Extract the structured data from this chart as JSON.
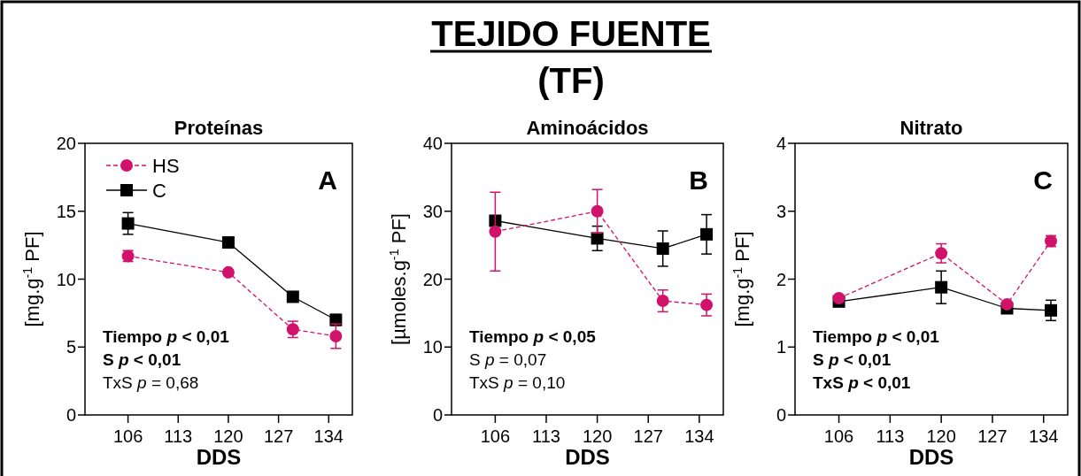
{
  "chart_data": [
    {
      "type": "other",
      "title": "TEJIDO FUENTE",
      "subtitle": "(TF)"
    },
    {
      "type": "line",
      "title": "Proteínas",
      "xlabel": "DDS",
      "ylabel": "[mg.g$^{-1}$ PF]",
      "xlim": [
        100,
        137.3
      ],
      "xticks": [
        106,
        113,
        120,
        127,
        134
      ],
      "ylim": [
        0,
        20
      ],
      "yticks": [
        0,
        5,
        10,
        15,
        20
      ],
      "legend": "top left",
      "grid": false,
      "annotations": [
        "A",
        "Tiempo p < 0,01",
        "S p < 0,01",
        "TxS p = 0,68"
      ],
      "series": [
        {
          "name": "HS",
          "color": "#d1126b",
          "marker": "circle",
          "line_style": "dashed",
          "x": [
            106,
            120,
            129,
            135
          ],
          "values": [
            11.7,
            10.5,
            6.3,
            5.8
          ],
          "errors": [
            0.4,
            0.2,
            0.6,
            0.9
          ]
        },
        {
          "name": "C",
          "color": "#000000",
          "marker": "square",
          "line_style": "solid",
          "x": [
            106,
            120,
            129,
            135
          ],
          "values": [
            14.1,
            12.7,
            8.7,
            7.0
          ],
          "errors": [
            0.8,
            0.2,
            0.3,
            0.4
          ]
        }
      ]
    },
    {
      "type": "line",
      "title": "Aminoácidos",
      "xlabel": "DDS",
      "ylabel": "[µmoles.g$^{-1}$ PF]",
      "xlim": [
        100,
        137.3
      ],
      "xticks": [
        106,
        113,
        120,
        127,
        134
      ],
      "ylim": [
        0,
        40
      ],
      "yticks": [
        0,
        10,
        20,
        30,
        40
      ],
      "grid": false,
      "annotations": [
        "B",
        "Tiempo p < 0,05",
        "S p = 0,07",
        "TxS p = 0,10"
      ],
      "series": [
        {
          "color": "#d1126b",
          "marker": "circle",
          "line_style": "dashed",
          "x": [
            106,
            120,
            129,
            135
          ],
          "values": [
            27,
            30,
            16.8,
            16.2
          ],
          "errors": [
            5.8,
            3.2,
            1.6,
            1.6
          ]
        },
        {
          "color": "#000000",
          "marker": "square",
          "line_style": "solid",
          "x": [
            106,
            120,
            129,
            135
          ],
          "values": [
            28.6,
            26,
            24.5,
            26.6
          ],
          "errors": [
            null,
            1.8,
            2.6,
            2.9
          ]
        }
      ]
    },
    {
      "type": "line",
      "title": "Nitrato",
      "xlabel": "DDS",
      "ylabel": "[mg.g$^{-1}$ PF]",
      "xlim": [
        100,
        137.3
      ],
      "xticks": [
        106,
        113,
        120,
        127,
        134
      ],
      "ylim": [
        0,
        4
      ],
      "yticks": [
        0,
        1,
        2,
        3,
        4
      ],
      "grid": false,
      "annotations": [
        "C",
        "Tiempo p < 0,01",
        "S p < 0,01",
        "TxS p < 0,01"
      ],
      "series": [
        {
          "color": "#d1126b",
          "marker": "circle",
          "line_style": "dashed",
          "x": [
            106,
            120,
            129,
            135
          ],
          "values": [
            1.72,
            2.38,
            1.63,
            2.56
          ],
          "errors": [
            null,
            0.14,
            null,
            0.08
          ]
        },
        {
          "color": "#000000",
          "marker": "square",
          "line_style": "solid",
          "x": [
            106,
            120,
            129,
            135
          ],
          "values": [
            1.67,
            1.88,
            1.57,
            1.54
          ],
          "errors": [
            null,
            0.24,
            null,
            0.15
          ]
        }
      ]
    }
  ]
}
